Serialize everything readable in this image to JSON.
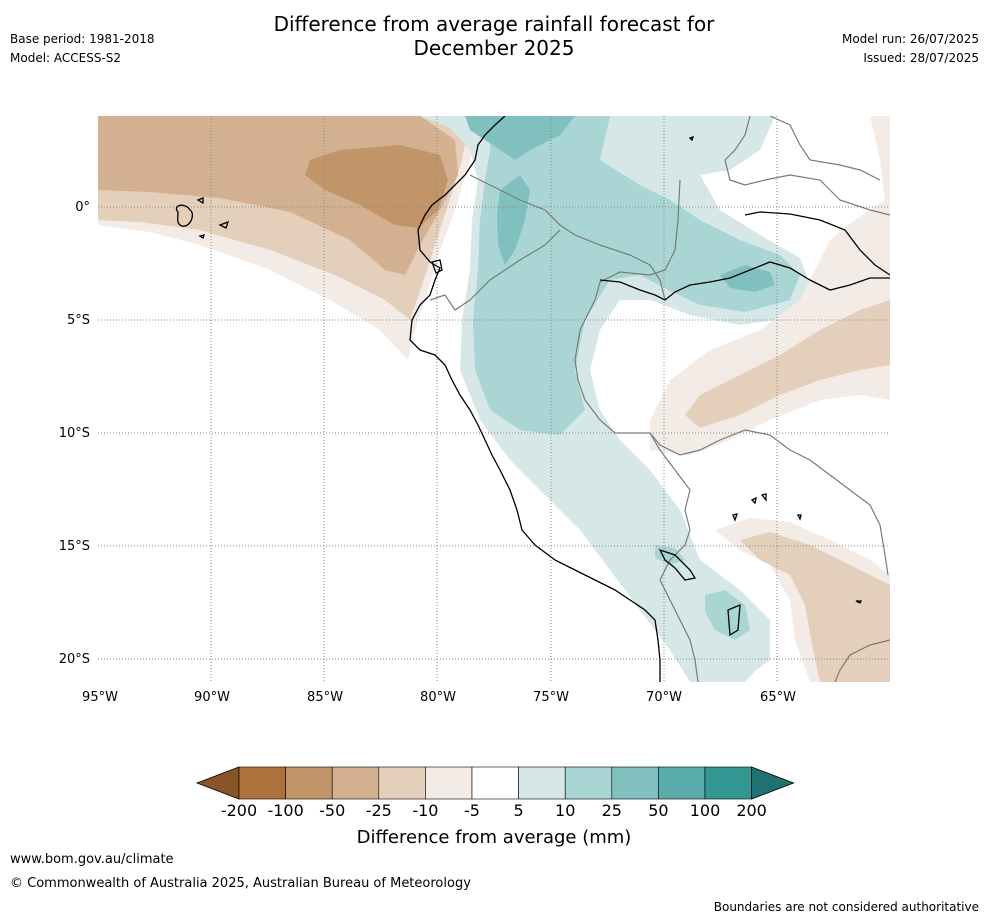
{
  "header": {
    "title_line1": "Difference from average rainfall forecast for",
    "title_line2": "December 2025",
    "base_period": "Base period: 1981-2018",
    "model": "Model: ACCESS-S2",
    "model_run": "Model run: 26/07/2025",
    "issued": "Issued: 28/07/2025"
  },
  "map": {
    "lat_labels": [
      "0°",
      "5°S",
      "10°S",
      "15°S",
      "20°S"
    ],
    "lon_labels": [
      "95°W",
      "90°W",
      "85°W",
      "80°W",
      "75°W",
      "70°W",
      "65°W"
    ],
    "colors": {
      "coast": "#000000",
      "borders": "#7a7a7a",
      "grid": "#888888"
    }
  },
  "colorbar": {
    "title": "Difference from average (mm)",
    "tick_labels": [
      "-200",
      "-100",
      "-50",
      "-25",
      "-10",
      "-5",
      "5",
      "10",
      "25",
      "50",
      "100",
      "200"
    ],
    "colors": [
      "#8a5526",
      "#ad723c",
      "#c29568",
      "#d3b08f",
      "#e4cfbb",
      "#f3ebe5",
      "#ffffff",
      "#d5e8e7",
      "#a9d6d4",
      "#80c1bf",
      "#5aacaa",
      "#339894",
      "#1e726f"
    ]
  },
  "footer": {
    "website": "www.bom.gov.au/climate",
    "copyright": "© Commonwealth of Australia 2025, Australian Bureau of Meteorology",
    "disclaimer": "Boundaries are not considered authoritative"
  }
}
